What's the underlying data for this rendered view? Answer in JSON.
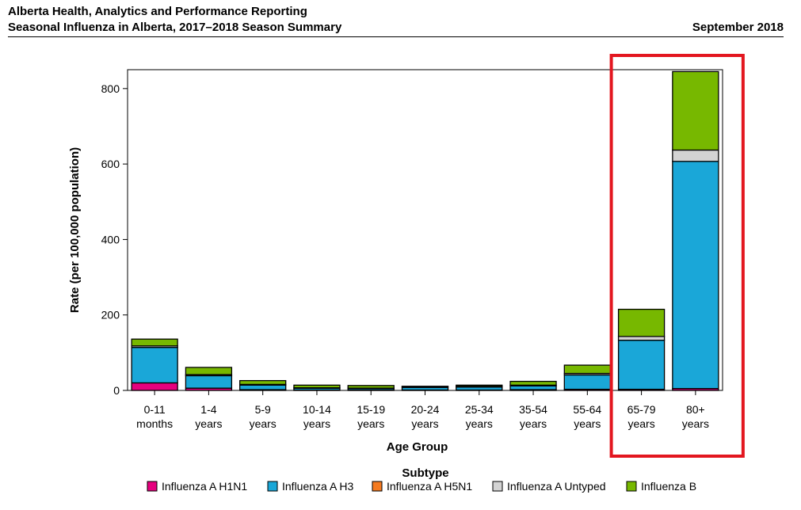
{
  "header": {
    "line1": "Alberta Health, Analytics and Performance Reporting",
    "line2": "Seasonal Influenza in Alberta, 2017–2018 Season Summary",
    "date": "September 2018"
  },
  "chart_data": {
    "type": "bar",
    "stacked": true,
    "xlabel": "Age Group",
    "ylabel": "Rate (per 100,000 population)",
    "ylim": [
      0,
      850
    ],
    "yticks": [
      0,
      200,
      400,
      600,
      800
    ],
    "categories": [
      [
        "0-11",
        "months"
      ],
      [
        "1-4",
        "years"
      ],
      [
        "5-9",
        "years"
      ],
      [
        "10-14",
        "years"
      ],
      [
        "15-19",
        "years"
      ],
      [
        "20-24",
        "years"
      ],
      [
        "25-34",
        "years"
      ],
      [
        "35-54",
        "years"
      ],
      [
        "55-64",
        "years"
      ],
      [
        "65-79",
        "years"
      ],
      [
        "80+",
        "years"
      ]
    ],
    "series": [
      {
        "name": "Influenza A H1N1",
        "color": "#e6007e",
        "values": [
          20,
          6,
          2,
          1,
          1,
          1,
          1,
          2,
          3,
          3,
          5
        ]
      },
      {
        "name": "Influenza A H3",
        "color": "#1aa7d8",
        "values": [
          94,
          33,
          12,
          5,
          4,
          7,
          8,
          10,
          38,
          130,
          602
        ]
      },
      {
        "name": "Influenza A H5N1",
        "color": "#f47a20",
        "values": [
          0,
          0,
          0,
          0,
          0,
          0,
          0,
          0,
          0,
          0,
          0
        ]
      },
      {
        "name": "Influenza A Untyped",
        "color": "#d3d3d3",
        "values": [
          4,
          3,
          2,
          1,
          1,
          2,
          2,
          2,
          4,
          10,
          30
        ]
      },
      {
        "name": "Influenza B",
        "color": "#77b800",
        "values": [
          18,
          19,
          10,
          7,
          7,
          1,
          3,
          10,
          22,
          72,
          208
        ]
      }
    ],
    "legend": {
      "title": "Subtype",
      "position": "bottom"
    },
    "highlight": {
      "categories": [
        "65-79",
        "80+"
      ],
      "color": "#e3161f"
    }
  }
}
